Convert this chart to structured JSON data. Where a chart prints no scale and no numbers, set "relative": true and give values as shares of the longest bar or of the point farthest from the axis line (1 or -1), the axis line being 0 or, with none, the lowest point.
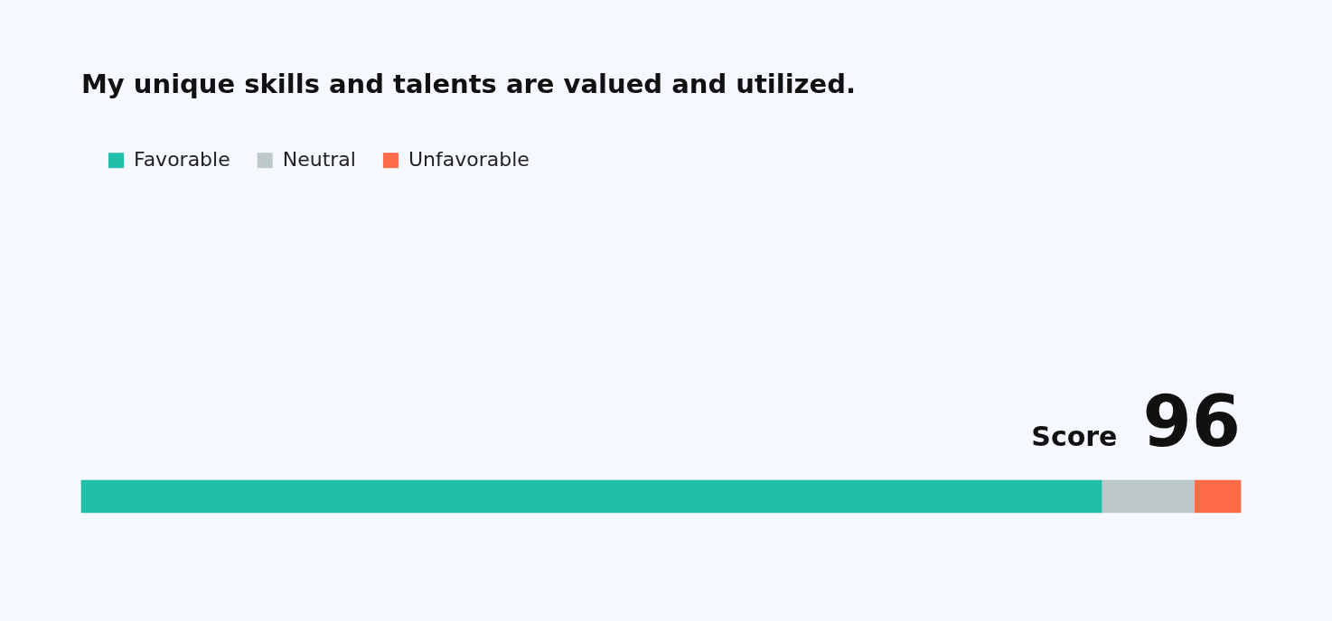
{
  "chart_data": {
    "type": "bar",
    "orientation": "horizontal",
    "stacked": true,
    "relative": true,
    "tick_labels": false,
    "title": "My unique skills and talents are valued and utilized.",
    "legend": "top left",
    "categories": [
      null
    ],
    "series": [
      {
        "name": "Favorable",
        "color": "#20bfa9",
        "values": [
          0.88
        ]
      },
      {
        "name": "Neutral",
        "color": "#bdc9c9",
        "values": [
          0.08
        ]
      },
      {
        "name": "Unfavorable",
        "color": "#ff6b47",
        "values": [
          0.04
        ]
      }
    ],
    "annotations": [
      "Score",
      "96"
    ]
  }
}
